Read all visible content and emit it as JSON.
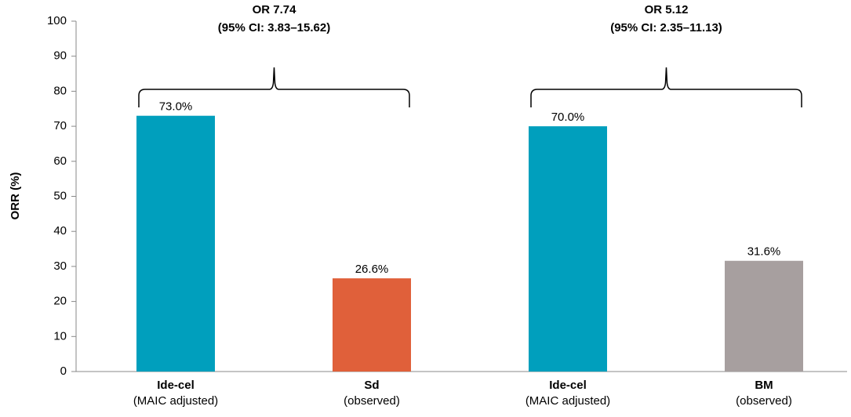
{
  "chart_data": {
    "type": "bar",
    "categories": [
      "Ide-cel",
      "Sd",
      "Ide-cel",
      "BM"
    ],
    "category_sublabels": [
      "(MAIC adjusted)",
      "(observed)",
      "(MAIC adjusted)",
      "(observed)"
    ],
    "values": [
      73.0,
      26.6,
      70.0,
      31.6
    ],
    "value_labels": [
      "73.0%",
      "26.6%",
      "70.0%",
      "31.6%"
    ],
    "colors": [
      "#009fbd",
      "#e0603a",
      "#009fbd",
      "#a79f9f"
    ],
    "y_label": "ORR (%)",
    "ylim": [
      0,
      100
    ],
    "yticks": [
      0,
      10,
      20,
      30,
      40,
      50,
      60,
      70,
      80,
      90,
      100
    ],
    "annotations": [
      {
        "text": "OR 7.74",
        "subtext": "(95% CI: 3.83–15.62)"
      },
      {
        "text": "OR 5.12",
        "subtext": "(95% CI: 2.35–11.13)"
      }
    ]
  }
}
